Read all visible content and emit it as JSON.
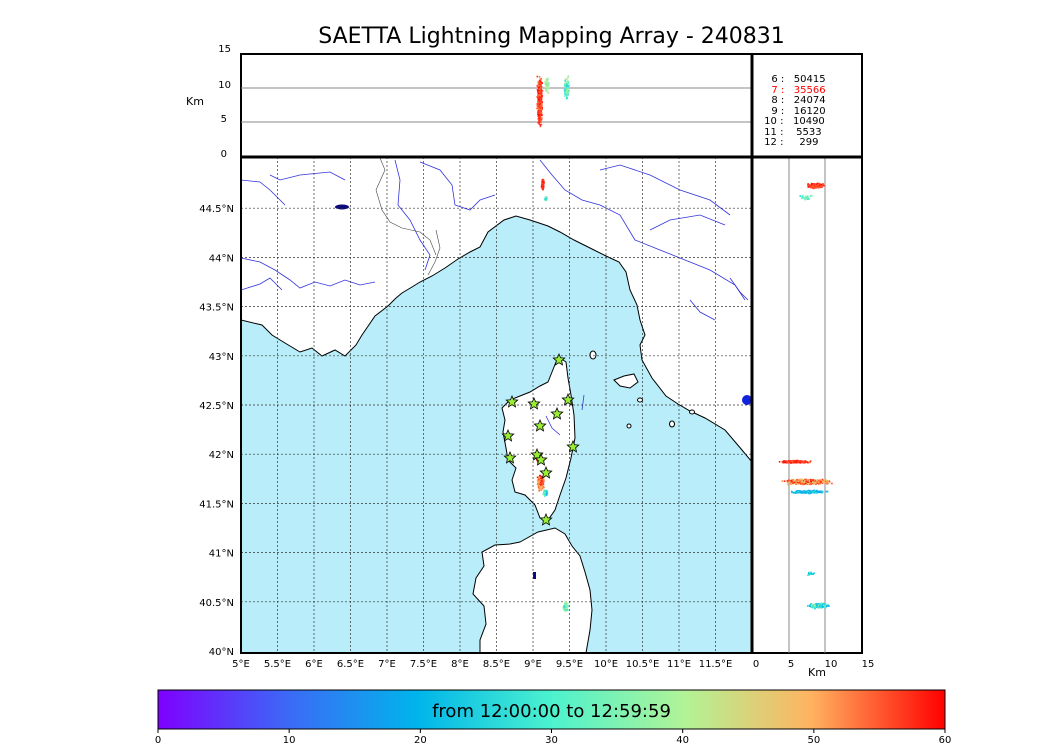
{
  "title": "SAETTA Lightning Mapping Array - 240831",
  "altitude_axis": {
    "label": "Km",
    "ticks": [
      "15",
      "10",
      "5",
      "0"
    ]
  },
  "side_axis": {
    "label": "Km",
    "ticks": [
      "0",
      "5",
      "10",
      "15"
    ]
  },
  "lon_ticks": [
    "5°E",
    "5.5°E",
    "6°E",
    "6.5°E",
    "7°E",
    "7.5°E",
    "8°E",
    "8.5°E",
    "9°E",
    "9.5°E",
    "10°E",
    "10.5°E",
    "11°E",
    "11.5°E"
  ],
  "lat_ticks": [
    "44.5°N",
    "44°N",
    "43.5°N",
    "43°N",
    "42.5°N",
    "42°N",
    "41.5°N",
    "41°N",
    "40.5°N",
    "40°N"
  ],
  "station_counts": [
    {
      "stations": "6",
      "count": "50415",
      "highlight": false
    },
    {
      "stations": "7",
      "count": "35566",
      "highlight": true
    },
    {
      "stations": "8",
      "count": "24074",
      "highlight": false
    },
    {
      "stations": "9",
      "count": "16120",
      "highlight": false
    },
    {
      "stations": "10",
      "count": "10490",
      "highlight": false
    },
    {
      "stations": "11",
      "count": "5533",
      "highlight": false
    },
    {
      "stations": "12",
      "count": "299",
      "highlight": false
    }
  ],
  "colorbar": {
    "label": "from 12:00:00 to 12:59:59",
    "ticks": [
      "0",
      "10",
      "20",
      "30",
      "40",
      "50",
      "60"
    ],
    "colormap": "rainbow"
  },
  "colors": {
    "sea": "#b8edf9",
    "grid": "#333333",
    "rivers": "#3333dd",
    "highlight": "#ff0000",
    "station_marker": "#99ee33"
  },
  "station_marker_count": 13
}
